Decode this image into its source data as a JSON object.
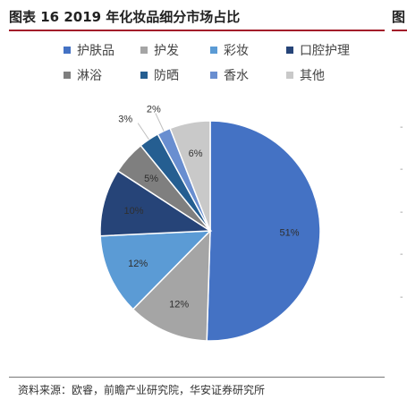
{
  "header": {
    "title": "图表 16 2019 年化妆品细分市场占比",
    "title_cut": "图"
  },
  "chart_data": {
    "type": "pie",
    "categories": [
      "护肤品",
      "护发",
      "彩妆",
      "口腔护理",
      "淋浴",
      "防晒",
      "香水",
      "其他"
    ],
    "values": [
      51,
      12,
      12,
      10,
      5,
      3,
      2,
      6
    ],
    "labels": [
      "51%",
      "12%",
      "12%",
      "10%",
      "5%",
      "3%",
      "2%",
      "6%"
    ],
    "colors": [
      "#4472c4",
      "#a5a5a5",
      "#5b9bd5",
      "#264478",
      "#7f7f7f",
      "#255e91",
      "#698ed0",
      "#c9c9c9"
    ],
    "label_colors": [
      "#2f2f2f",
      "#2f2f2f",
      "#2f2f2f",
      "#2f2f2f",
      "#2f2f2f",
      "#333333",
      "#333333",
      "#333333"
    ],
    "start_angle": "12 o'clock",
    "direction": "clockwise",
    "legend_position": "top"
  },
  "footer": {
    "source": "资料来源：欧睿，前瞻产业研究院，华安证券研究所"
  }
}
